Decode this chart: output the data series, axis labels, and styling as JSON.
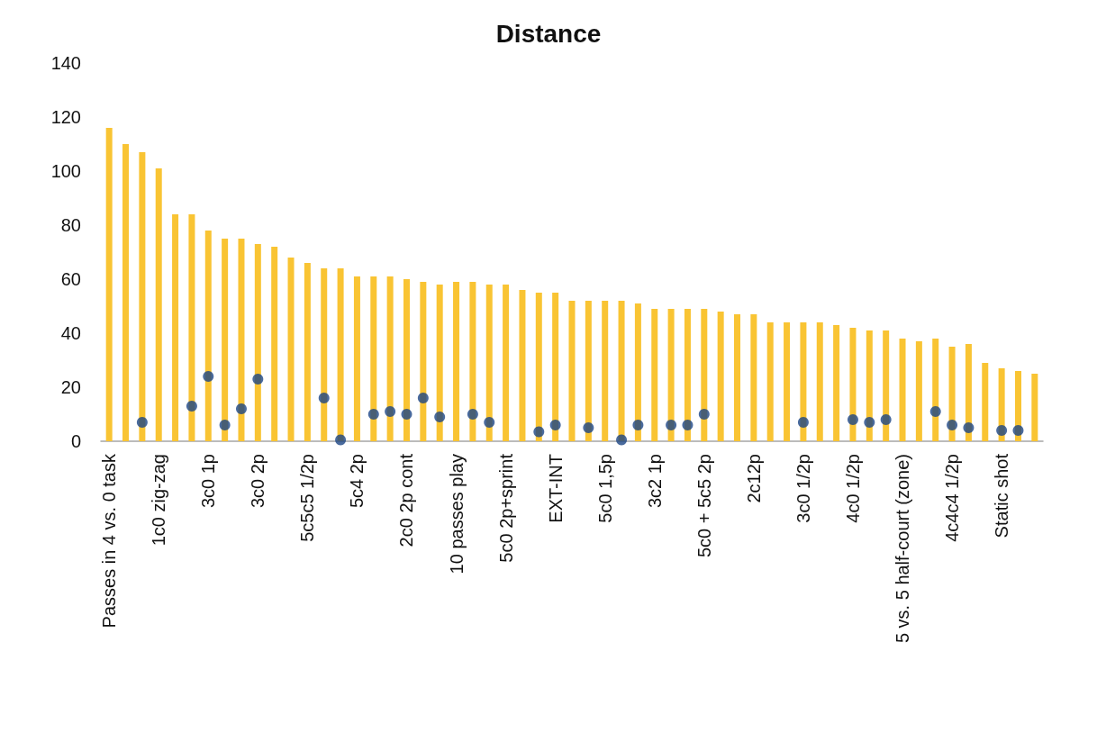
{
  "chart_data": {
    "type": "bar",
    "title": "Distance",
    "categories": [
      "Passes in 4 vs. 0 task",
      null,
      null,
      "1c0 zig-zag",
      null,
      null,
      "3c0 1p",
      null,
      null,
      "3c0 2p",
      null,
      null,
      "5c5c5 1/2p",
      null,
      null,
      "5c4 2p",
      null,
      null,
      "2c0 2p cont",
      null,
      null,
      "10 passes play",
      null,
      null,
      "5c0 2p+sprint",
      null,
      null,
      "EXT-INT",
      null,
      null,
      "5c0 1,5p",
      null,
      null,
      "3c2 1p",
      null,
      null,
      "5c0 + 5c5 2p",
      null,
      null,
      "2c12p",
      null,
      null,
      "3c0 1/2p",
      null,
      null,
      "4c0 1/2p",
      null,
      null,
      "5 vs. 5 half-court (zone)",
      null,
      null,
      "4c4c4 1/2p",
      null,
      null,
      "Static shot",
      null,
      null
    ],
    "series": [
      {
        "color": "#f9c433",
        "values": [
          116,
          110,
          107,
          101,
          84,
          84,
          78,
          75,
          75,
          73,
          72,
          68,
          66,
          64,
          64,
          61,
          61,
          61,
          60,
          59,
          58,
          59,
          59,
          58,
          58,
          56,
          55,
          55,
          52,
          52,
          52,
          52,
          51,
          49,
          49,
          49,
          49,
          48,
          47,
          47,
          44,
          44,
          44,
          44,
          43,
          42,
          41,
          41,
          38,
          37,
          38,
          35,
          36,
          29,
          27,
          26,
          25
        ]
      },
      {
        "type": "scatter",
        "color": "#1b4584",
        "marker": "circle",
        "values": [
          null,
          null,
          7,
          null,
          null,
          13,
          24,
          6,
          12,
          23,
          null,
          null,
          null,
          16,
          0.5,
          null,
          10,
          11,
          10,
          16,
          9,
          null,
          10,
          7,
          null,
          null,
          3.5,
          6,
          null,
          5,
          null,
          0.5,
          6,
          null,
          6,
          6,
          10,
          null,
          null,
          null,
          null,
          null,
          7,
          null,
          null,
          8,
          7,
          8,
          null,
          null,
          11,
          6,
          5,
          null,
          4,
          4,
          null
        ]
      }
    ],
    "ylim": [
      0,
      140
    ],
    "yticks": [
      0,
      20,
      40,
      60,
      80,
      100,
      120,
      140
    ],
    "grid": false
  }
}
